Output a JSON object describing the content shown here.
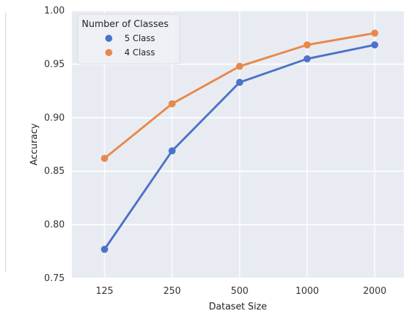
{
  "chart_data": {
    "type": "line",
    "title": "",
    "xlabel": "Dataset Size",
    "ylabel": "Accuracy",
    "categories": [
      "125",
      "250",
      "500",
      "1000",
      "2000"
    ],
    "ylim": [
      0.75,
      1.0
    ],
    "yticks": [
      "0.75",
      "0.80",
      "0.85",
      "0.90",
      "0.95",
      "1.00"
    ],
    "grid": true,
    "legend": {
      "title": "Number of Classes",
      "placement": "top-left"
    },
    "series": [
      {
        "name": "5 Class",
        "color": "#4c72c9",
        "values": [
          0.777,
          0.869,
          0.933,
          0.955,
          0.968
        ]
      },
      {
        "name": "4 Class",
        "color": "#e8884a",
        "values": [
          0.862,
          0.913,
          0.948,
          0.968,
          0.979
        ]
      }
    ],
    "background_color": "#e8ecf2",
    "grid_color": "#ffffff"
  }
}
